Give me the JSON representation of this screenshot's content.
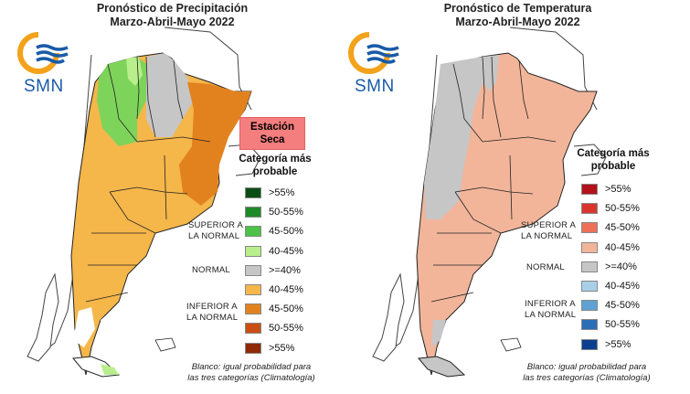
{
  "precipitation": {
    "title_line1": "Pronóstico de Precipitación",
    "title_line2": "Marzo-Abril-Mayo 2022",
    "logo_text": "SMN",
    "dry_station_line1": "Estación",
    "dry_station_line2": "Seca",
    "legend_title_line1": "Categoría más",
    "legend_title_line2": "probable",
    "legend_items": [
      {
        "label": ">55%",
        "color": "#0a4d14"
      },
      {
        "label": "50-55%",
        "color": "#1f8a2a"
      },
      {
        "label": "45-50%",
        "color": "#4cc247"
      },
      {
        "label": "40-45%",
        "color": "#b9ee8c"
      },
      {
        "label": ">=40%",
        "color": "#c6c6c6"
      },
      {
        "label": "40-45%",
        "color": "#f5b64a"
      },
      {
        "label": "45-50%",
        "color": "#e2821f"
      },
      {
        "label": "50-55%",
        "color": "#c84f12"
      },
      {
        "label": ">55%",
        "color": "#8e2a0a"
      }
    ],
    "superior_line1": "SUPERIOR A",
    "superior_line2": "LA NORMAL",
    "normal": "NORMAL",
    "inferior_line1": "INFERIOR A",
    "inferior_line2": "LA NORMAL",
    "note_line1": "Blanco: igual probabilidad para",
    "note_line2": "las tres categorías (Climatología)"
  },
  "temperature": {
    "title_line1": "Pronóstico de Temperatura",
    "title_line2": "Marzo-Abril-Mayo 2022",
    "logo_text": "SMN",
    "legend_title_line1": "Categoría más",
    "legend_title_line2": "probable",
    "legend_items": [
      {
        "label": ">55%",
        "color": "#b3121a"
      },
      {
        "label": "50-55%",
        "color": "#d8362d"
      },
      {
        "label": "45-50%",
        "color": "#ee7157"
      },
      {
        "label": "40-45%",
        "color": "#f2b59a"
      },
      {
        "label": ">=40%",
        "color": "#c6c6c6"
      },
      {
        "label": "40-45%",
        "color": "#a9cfe8"
      },
      {
        "label": "45-50%",
        "color": "#5fa2d3"
      },
      {
        "label": "50-55%",
        "color": "#2a6fb5"
      },
      {
        "label": ">55%",
        "color": "#0c3f8d"
      }
    ],
    "superior_line1": "SUPERIOR A",
    "superior_line2": "LA NORMAL",
    "normal": "NORMAL",
    "inferior_line1": "INFERIOR A",
    "inferior_line2": "LA NORMAL",
    "note_line1": "Blanco: igual probabilidad para",
    "note_line2": "las tres categorías (Climatología)"
  },
  "colors": {
    "logo_orange": "#f3a21b",
    "logo_blue": "#1a5aa8",
    "map_border": "#222222",
    "dry_box": "#f47d7d"
  }
}
